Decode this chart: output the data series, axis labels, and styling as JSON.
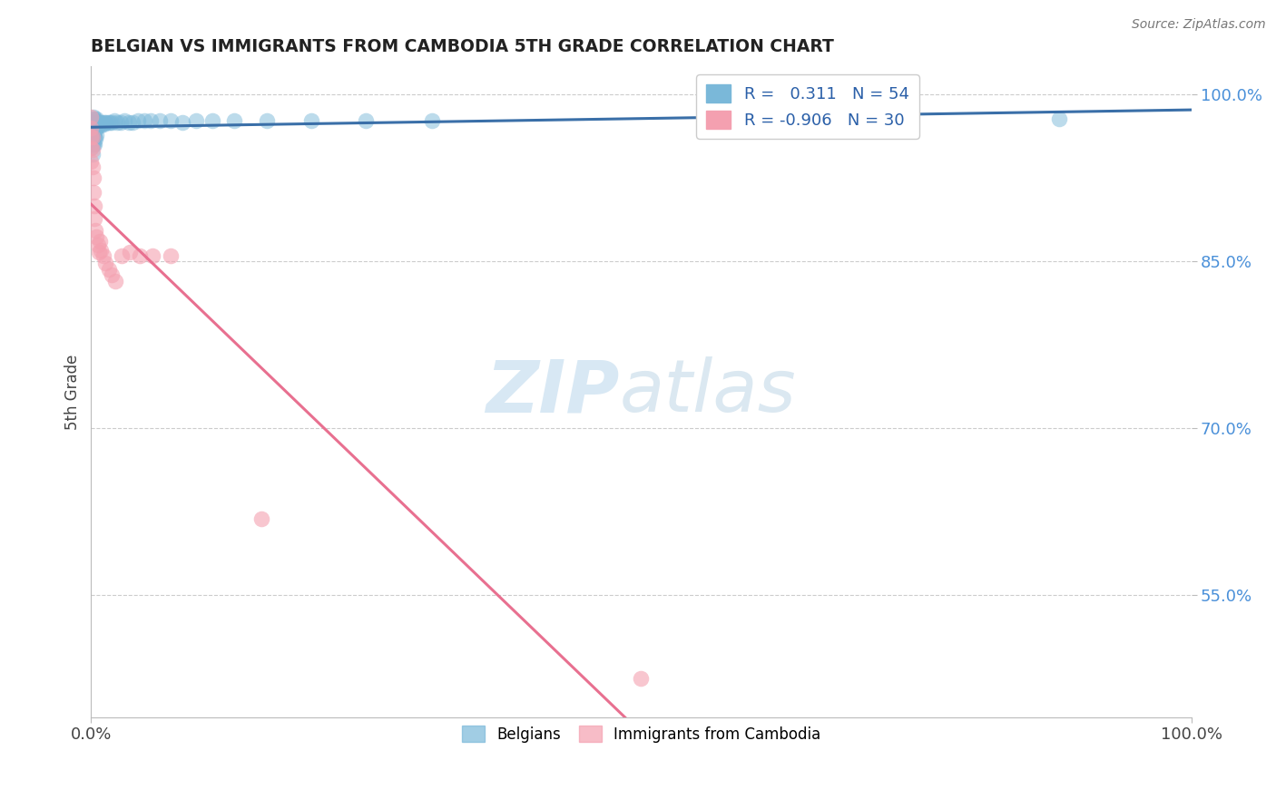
{
  "title": "BELGIAN VS IMMIGRANTS FROM CAMBODIA 5TH GRADE CORRELATION CHART",
  "source": "Source: ZipAtlas.com",
  "ylabel": "5th Grade",
  "xlim": [
    0.0,
    1.0
  ],
  "ylim": [
    0.44,
    1.025
  ],
  "ytick_vals": [
    0.55,
    0.7,
    0.85,
    1.0
  ],
  "ytick_labels": [
    "55.0%",
    "70.0%",
    "85.0%",
    "100.0%"
  ],
  "xtick_vals": [
    0.0,
    1.0
  ],
  "xtick_labels": [
    "0.0%",
    "100.0%"
  ],
  "belgian_R": 0.311,
  "belgian_N": 54,
  "cambodia_R": -0.906,
  "cambodia_N": 30,
  "belgian_color": "#7ab8d9",
  "cambodia_color": "#f4a0b0",
  "belgian_line_color": "#3a6fa8",
  "cambodia_line_color": "#e87090",
  "belgian_points_x": [
    0.0,
    0.0,
    0.0,
    0.0,
    0.001,
    0.001,
    0.001,
    0.001,
    0.001,
    0.002,
    0.002,
    0.002,
    0.002,
    0.003,
    0.003,
    0.003,
    0.003,
    0.004,
    0.004,
    0.004,
    0.005,
    0.005,
    0.005,
    0.006,
    0.007,
    0.008,
    0.009,
    0.01,
    0.011,
    0.012,
    0.013,
    0.015,
    0.017,
    0.019,
    0.021,
    0.024,
    0.027,
    0.03,
    0.034,
    0.038,
    0.043,
    0.048,
    0.054,
    0.062,
    0.072,
    0.083,
    0.095,
    0.11,
    0.13,
    0.16,
    0.2,
    0.25,
    0.31,
    0.88
  ],
  "belgian_points_y": [
    0.975,
    0.968,
    0.96,
    0.952,
    0.978,
    0.97,
    0.962,
    0.955,
    0.946,
    0.98,
    0.972,
    0.963,
    0.955,
    0.978,
    0.97,
    0.962,
    0.955,
    0.976,
    0.968,
    0.96,
    0.978,
    0.97,
    0.963,
    0.975,
    0.972,
    0.975,
    0.972,
    0.975,
    0.973,
    0.975,
    0.975,
    0.975,
    0.975,
    0.975,
    0.976,
    0.975,
    0.975,
    0.976,
    0.975,
    0.975,
    0.976,
    0.976,
    0.976,
    0.976,
    0.976,
    0.975,
    0.976,
    0.976,
    0.976,
    0.976,
    0.976,
    0.976,
    0.976,
    0.978
  ],
  "cambodia_points_x": [
    0.0,
    0.0,
    0.0,
    0.0,
    0.0,
    0.001,
    0.001,
    0.001,
    0.002,
    0.002,
    0.003,
    0.003,
    0.004,
    0.005,
    0.006,
    0.007,
    0.008,
    0.009,
    0.011,
    0.013,
    0.016,
    0.019,
    0.022,
    0.028,
    0.035,
    0.044,
    0.056,
    0.072,
    0.155,
    0.5
  ],
  "cambodia_points_y": [
    0.98,
    0.97,
    0.962,
    0.952,
    0.94,
    0.962,
    0.95,
    0.935,
    0.925,
    0.912,
    0.9,
    0.888,
    0.878,
    0.872,
    0.865,
    0.858,
    0.868,
    0.86,
    0.855,
    0.848,
    0.843,
    0.838,
    0.832,
    0.855,
    0.858,
    0.855,
    0.855,
    0.855,
    0.618,
    0.475
  ]
}
